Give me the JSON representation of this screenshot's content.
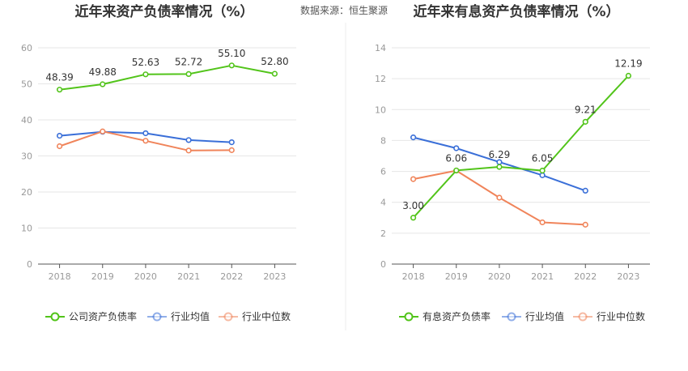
{
  "source_note": "数据来源：恒生聚源",
  "chart_data": [
    {
      "type": "line",
      "title": "近年来资产负债率情况（%）",
      "categories": [
        "2018",
        "2019",
        "2020",
        "2021",
        "2022",
        "2023"
      ],
      "ylim": [
        0,
        60
      ],
      "yticks": [
        0,
        10,
        20,
        30,
        40,
        50,
        60
      ],
      "grid": true,
      "legend_position": "bottom",
      "series": [
        {
          "name": "公司资产负债率",
          "color": "#52c41a",
          "values": [
            48.39,
            49.88,
            52.63,
            52.72,
            55.1,
            52.8
          ],
          "labels": [
            "48.39",
            "49.88",
            "52.63",
            "52.72",
            "55.10",
            "52.80"
          ]
        },
        {
          "name": "行业均值",
          "color": "#3a6fd8",
          "values": [
            35.6,
            36.7,
            36.3,
            34.4,
            33.8,
            null
          ]
        },
        {
          "name": "行业中位数",
          "color": "#f0845a",
          "values": [
            32.7,
            36.8,
            34.2,
            31.5,
            31.6,
            null
          ]
        }
      ]
    },
    {
      "type": "line",
      "title": "近年来有息资产负债率情况（%）",
      "categories": [
        "2018",
        "2019",
        "2020",
        "2021",
        "2022",
        "2023"
      ],
      "ylim": [
        0,
        14
      ],
      "yticks": [
        0,
        2,
        4,
        6,
        8,
        10,
        12,
        14
      ],
      "grid": true,
      "legend_position": "bottom",
      "series": [
        {
          "name": "有息资产负债率",
          "color": "#52c41a",
          "values": [
            3.0,
            6.06,
            6.29,
            6.05,
            9.21,
            12.19
          ],
          "labels": [
            "3.00",
            "6.06",
            "6.29",
            "6.05",
            "9.21",
            "12.19"
          ]
        },
        {
          "name": "行业均值",
          "color": "#3a6fd8",
          "values": [
            8.2,
            7.5,
            6.6,
            5.75,
            4.75,
            null
          ]
        },
        {
          "name": "行业中位数",
          "color": "#f0845a",
          "values": [
            5.5,
            6.05,
            4.3,
            2.7,
            2.55,
            null
          ]
        }
      ]
    }
  ]
}
